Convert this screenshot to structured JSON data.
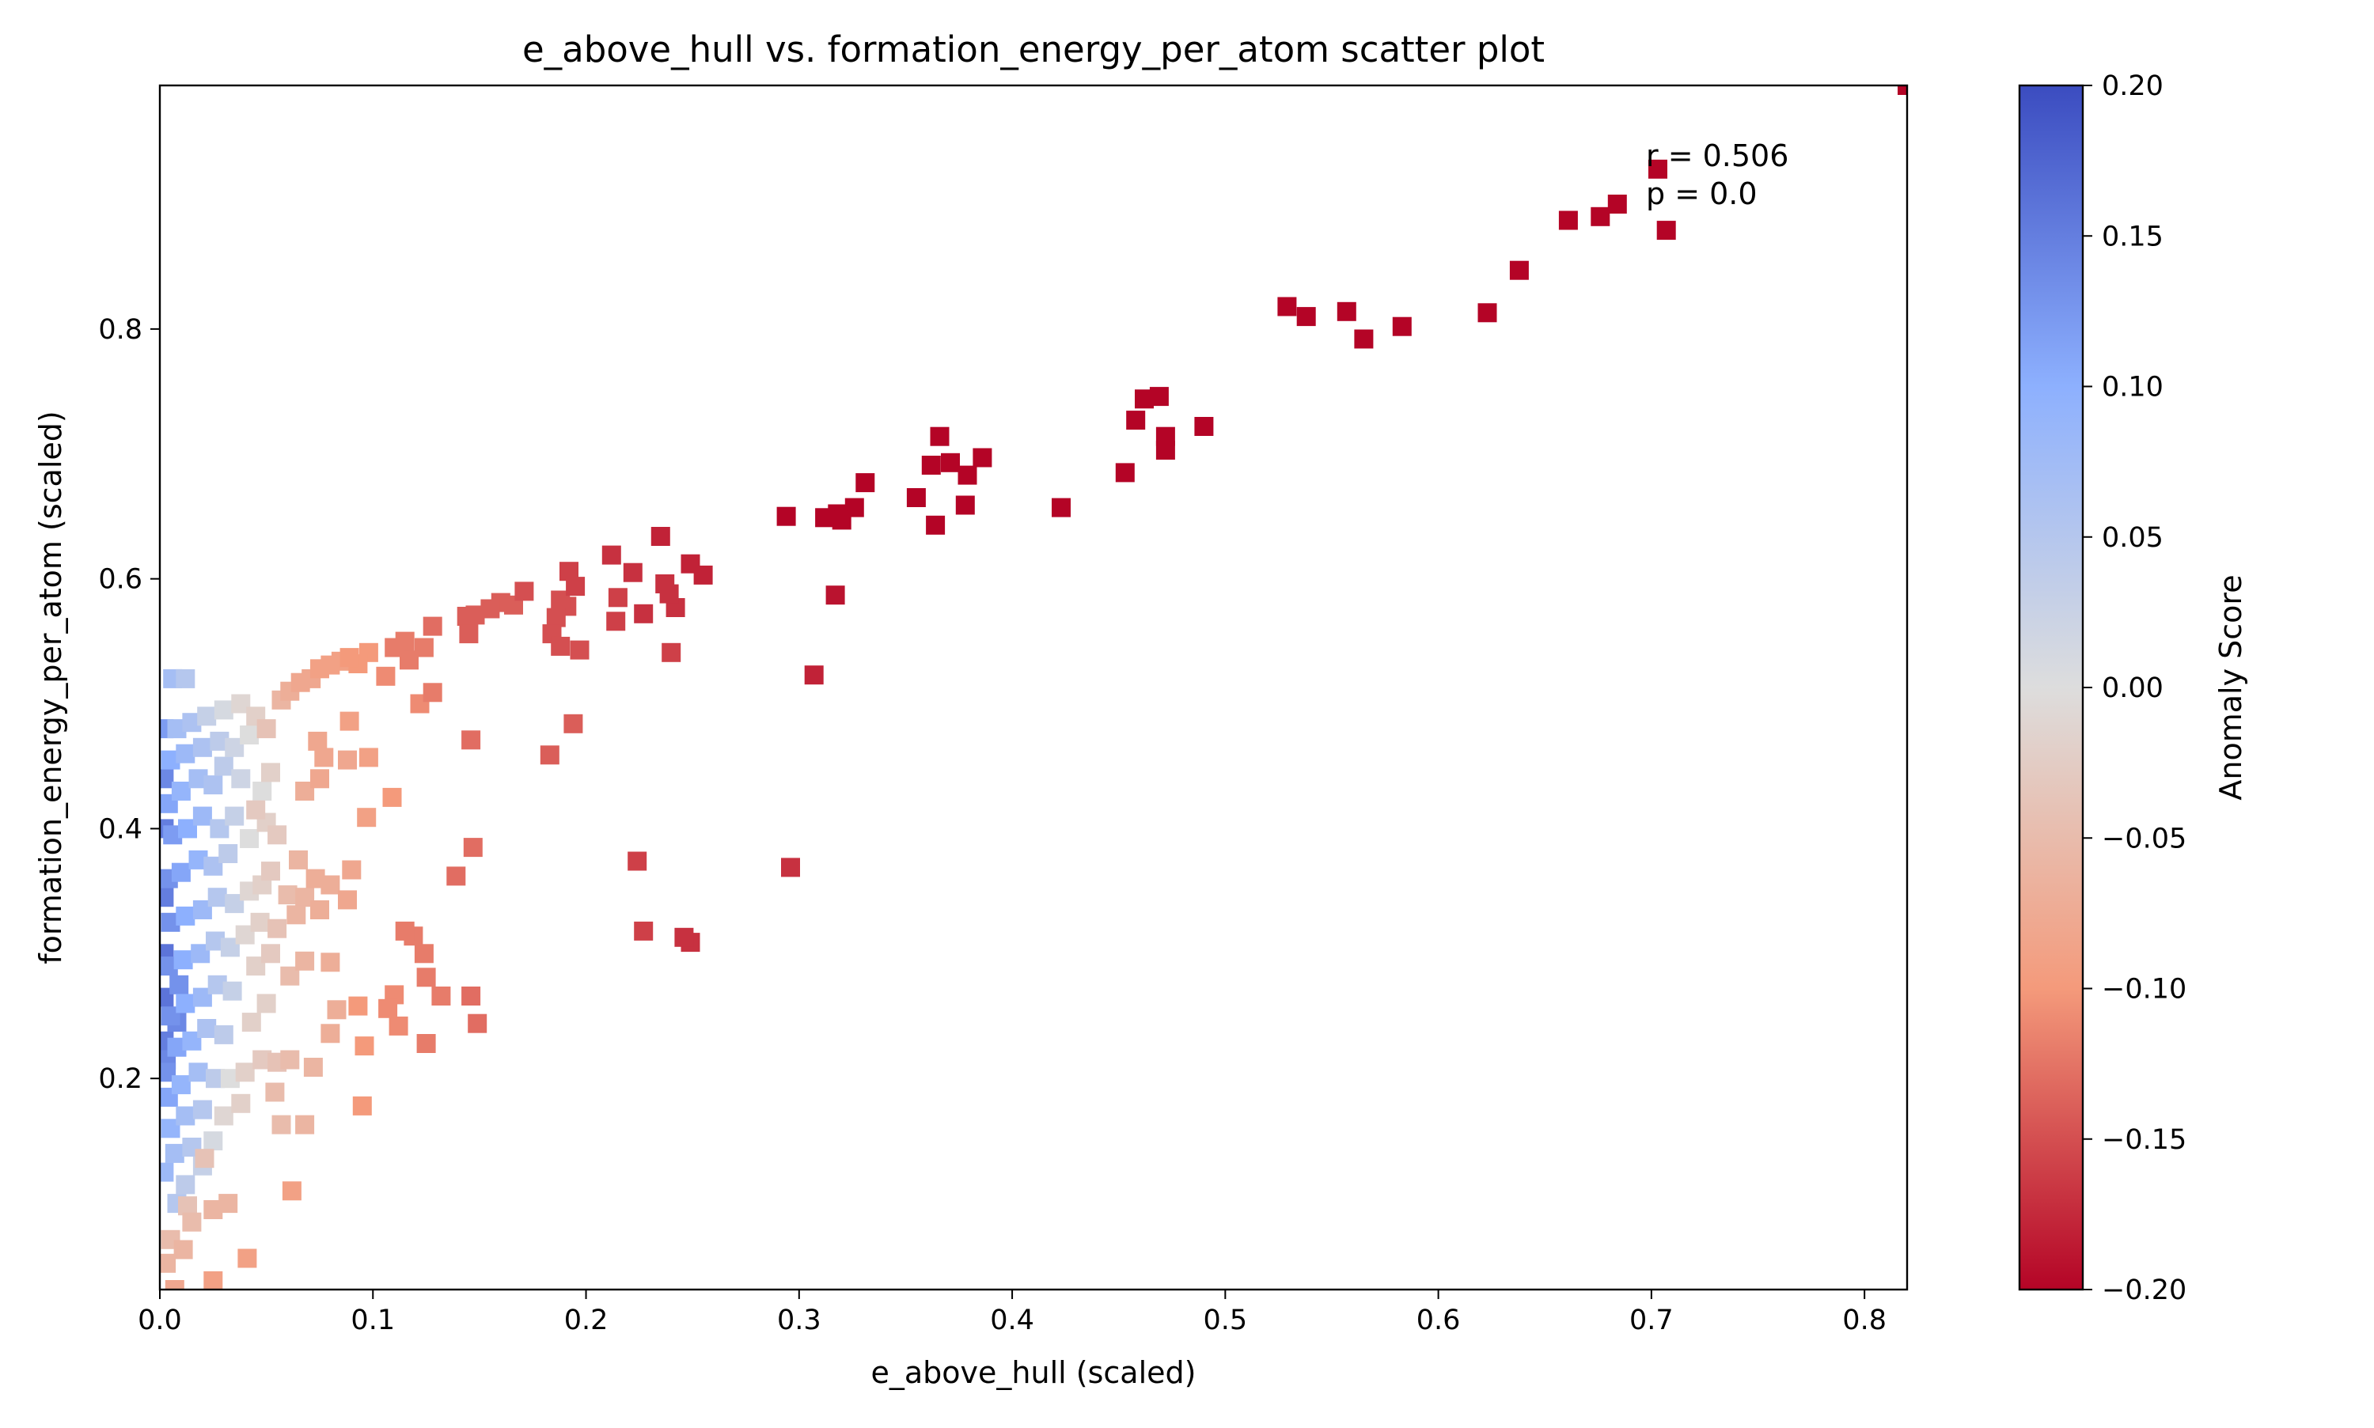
{
  "chart_data": {
    "type": "scatter",
    "title": "e_above_hull vs. formation_energy_per_atom scatter plot",
    "xlabel": "e_above_hull (scaled)",
    "ylabel": "formation_energy_per_atom (scaled)",
    "xlim": [
      0.0,
      0.82
    ],
    "ylim": [
      0.031,
      0.995
    ],
    "xticks": [
      0.0,
      0.1,
      0.2,
      0.3,
      0.4,
      0.5,
      0.6,
      0.7,
      0.8
    ],
    "xtick_labels": [
      "0.0",
      "0.1",
      "0.2",
      "0.3",
      "0.4",
      "0.5",
      "0.6",
      "0.7",
      "0.8"
    ],
    "yticks": [
      0.2,
      0.4,
      0.6,
      0.8
    ],
    "ytick_labels": [
      "0.2",
      "0.4",
      "0.6",
      "0.8"
    ],
    "grid": false,
    "marker": "square",
    "colorbar": {
      "label": "Anomaly Score",
      "colormap": "coolwarm",
      "range": [
        -0.2,
        0.2
      ],
      "ticks": [
        0.2,
        0.15,
        0.1,
        0.05,
        0.0,
        -0.05,
        -0.1,
        -0.15,
        -0.2
      ],
      "tick_labels": [
        "0.20",
        "0.15",
        "0.10",
        "0.05",
        "0.00",
        "−0.05",
        "−0.10",
        "−0.15",
        "−0.20"
      ]
    },
    "annotations": [
      "r = 0.506",
      "p = 0.0"
    ],
    "points": [
      [
        0.82,
        0.995,
        -0.2
      ],
      [
        0.703,
        0.928,
        -0.2
      ],
      [
        0.707,
        0.879,
        -0.2
      ],
      [
        0.684,
        0.9,
        -0.2
      ],
      [
        0.676,
        0.89,
        -0.2
      ],
      [
        0.661,
        0.887,
        -0.2
      ],
      [
        0.638,
        0.847,
        -0.2
      ],
      [
        0.623,
        0.813,
        -0.2
      ],
      [
        0.583,
        0.802,
        -0.2
      ],
      [
        0.565,
        0.792,
        -0.2
      ],
      [
        0.557,
        0.814,
        -0.2
      ],
      [
        0.538,
        0.81,
        -0.2
      ],
      [
        0.529,
        0.818,
        -0.2
      ],
      [
        0.49,
        0.722,
        -0.2
      ],
      [
        0.472,
        0.714,
        -0.2
      ],
      [
        0.472,
        0.703,
        -0.2
      ],
      [
        0.469,
        0.746,
        -0.2
      ],
      [
        0.462,
        0.744,
        -0.2
      ],
      [
        0.458,
        0.727,
        -0.2
      ],
      [
        0.453,
        0.685,
        -0.2
      ],
      [
        0.423,
        0.657,
        -0.2
      ],
      [
        0.386,
        0.697,
        -0.2
      ],
      [
        0.379,
        0.683,
        -0.2
      ],
      [
        0.378,
        0.659,
        -0.2
      ],
      [
        0.371,
        0.693,
        -0.2
      ],
      [
        0.366,
        0.714,
        -0.2
      ],
      [
        0.362,
        0.691,
        -0.2
      ],
      [
        0.364,
        0.643,
        -0.2
      ],
      [
        0.355,
        0.665,
        -0.2
      ],
      [
        0.331,
        0.677,
        -0.2
      ],
      [
        0.326,
        0.657,
        -0.2
      ],
      [
        0.318,
        0.652,
        -0.2
      ],
      [
        0.32,
        0.647,
        -0.2
      ],
      [
        0.312,
        0.649,
        -0.2
      ],
      [
        0.294,
        0.65,
        -0.2
      ],
      [
        0.317,
        0.587,
        -0.19
      ],
      [
        0.307,
        0.523,
        -0.18
      ],
      [
        0.296,
        0.369,
        -0.17
      ],
      [
        0.249,
        0.309,
        -0.17
      ],
      [
        0.246,
        0.313,
        -0.17
      ],
      [
        0.227,
        0.318,
        -0.16
      ],
      [
        0.224,
        0.374,
        -0.16
      ],
      [
        0.255,
        0.603,
        -0.18
      ],
      [
        0.249,
        0.612,
        -0.18
      ],
      [
        0.242,
        0.577,
        -0.17
      ],
      [
        0.239,
        0.588,
        -0.17
      ],
      [
        0.237,
        0.596,
        -0.17
      ],
      [
        0.235,
        0.634,
        -0.18
      ],
      [
        0.24,
        0.541,
        -0.16
      ],
      [
        0.227,
        0.572,
        -0.17
      ],
      [
        0.222,
        0.605,
        -0.17
      ],
      [
        0.215,
        0.585,
        -0.16
      ],
      [
        0.212,
        0.619,
        -0.17
      ],
      [
        0.214,
        0.566,
        -0.16
      ],
      [
        0.197,
        0.543,
        -0.15
      ],
      [
        0.195,
        0.594,
        -0.16
      ],
      [
        0.192,
        0.606,
        -0.16
      ],
      [
        0.191,
        0.578,
        -0.15
      ],
      [
        0.188,
        0.583,
        -0.15
      ],
      [
        0.186,
        0.569,
        -0.15
      ],
      [
        0.184,
        0.556,
        -0.15
      ],
      [
        0.188,
        0.546,
        -0.15
      ],
      [
        0.194,
        0.484,
        -0.14
      ],
      [
        0.183,
        0.459,
        -0.14
      ],
      [
        0.171,
        0.59,
        -0.15
      ],
      [
        0.166,
        0.579,
        -0.14
      ],
      [
        0.16,
        0.581,
        -0.14
      ],
      [
        0.155,
        0.576,
        -0.14
      ],
      [
        0.148,
        0.571,
        -0.14
      ],
      [
        0.144,
        0.57,
        -0.14
      ],
      [
        0.145,
        0.556,
        -0.14
      ],
      [
        0.146,
        0.471,
        -0.13
      ],
      [
        0.147,
        0.385,
        -0.13
      ],
      [
        0.139,
        0.362,
        -0.13
      ],
      [
        0.149,
        0.244,
        -0.13
      ],
      [
        0.146,
        0.266,
        -0.13
      ],
      [
        0.132,
        0.266,
        -0.12
      ],
      [
        0.125,
        0.281,
        -0.12
      ],
      [
        0.124,
        0.3,
        -0.12
      ],
      [
        0.119,
        0.314,
        -0.12
      ],
      [
        0.115,
        0.318,
        -0.12
      ],
      [
        0.125,
        0.228,
        -0.12
      ],
      [
        0.112,
        0.242,
        -0.11
      ],
      [
        0.11,
        0.267,
        -0.11
      ],
      [
        0.107,
        0.256,
        -0.11
      ],
      [
        0.096,
        0.226,
        -0.1
      ],
      [
        0.093,
        0.258,
        -0.1
      ],
      [
        0.095,
        0.178,
        -0.1
      ],
      [
        0.062,
        0.11,
        -0.09
      ],
      [
        0.041,
        0.056,
        -0.09
      ],
      [
        0.025,
        0.038,
        -0.09
      ],
      [
        0.007,
        0.031,
        -0.08
      ],
      [
        0.128,
        0.509,
        -0.12
      ],
      [
        0.122,
        0.5,
        -0.11
      ],
      [
        0.128,
        0.562,
        -0.13
      ],
      [
        0.124,
        0.545,
        -0.12
      ],
      [
        0.117,
        0.535,
        -0.12
      ],
      [
        0.115,
        0.55,
        -0.12
      ],
      [
        0.11,
        0.545,
        -0.12
      ],
      [
        0.106,
        0.522,
        -0.11
      ],
      [
        0.098,
        0.541,
        -0.1
      ],
      [
        0.093,
        0.532,
        -0.1
      ],
      [
        0.089,
        0.537,
        -0.1
      ],
      [
        0.085,
        0.534,
        -0.09
      ],
      [
        0.08,
        0.531,
        -0.09
      ],
      [
        0.075,
        0.528,
        -0.09
      ],
      [
        0.071,
        0.52,
        -0.08
      ],
      [
        0.066,
        0.517,
        -0.08
      ],
      [
        0.061,
        0.51,
        -0.07
      ],
      [
        0.057,
        0.503,
        -0.06
      ],
      [
        0.109,
        0.425,
        -0.1
      ],
      [
        0.098,
        0.457,
        -0.09
      ],
      [
        0.097,
        0.409,
        -0.09
      ],
      [
        0.089,
        0.486,
        -0.09
      ],
      [
        0.088,
        0.455,
        -0.08
      ],
      [
        0.077,
        0.457,
        -0.08
      ],
      [
        0.075,
        0.44,
        -0.08
      ],
      [
        0.068,
        0.43,
        -0.07
      ],
      [
        0.074,
        0.47,
        -0.08
      ],
      [
        0.09,
        0.367,
        -0.08
      ],
      [
        0.088,
        0.343,
        -0.08
      ],
      [
        0.08,
        0.355,
        -0.07
      ],
      [
        0.075,
        0.335,
        -0.07
      ],
      [
        0.073,
        0.36,
        -0.07
      ],
      [
        0.068,
        0.345,
        -0.06
      ],
      [
        0.064,
        0.331,
        -0.06
      ],
      [
        0.06,
        0.347,
        -0.05
      ],
      [
        0.065,
        0.375,
        -0.06
      ],
      [
        0.08,
        0.293,
        -0.07
      ],
      [
        0.068,
        0.294,
        -0.06
      ],
      [
        0.061,
        0.282,
        -0.05
      ],
      [
        0.083,
        0.255,
        -0.07
      ],
      [
        0.08,
        0.236,
        -0.07
      ],
      [
        0.072,
        0.209,
        -0.06
      ],
      [
        0.068,
        0.163,
        -0.06
      ],
      [
        0.057,
        0.163,
        -0.05
      ],
      [
        0.054,
        0.189,
        -0.05
      ],
      [
        0.061,
        0.215,
        -0.05
      ],
      [
        0.055,
        0.213,
        -0.04
      ],
      [
        0.032,
        0.1,
        -0.06
      ],
      [
        0.025,
        0.095,
        -0.06
      ],
      [
        0.021,
        0.136,
        -0.04
      ],
      [
        0.015,
        0.085,
        -0.05
      ],
      [
        0.011,
        0.063,
        -0.06
      ],
      [
        0.005,
        0.071,
        -0.05
      ],
      [
        0.003,
        0.052,
        -0.06
      ],
      [
        0.013,
        0.098,
        -0.04
      ],
      [
        0.052,
        0.445,
        -0.02
      ],
      [
        0.048,
        0.43,
        0.0
      ],
      [
        0.045,
        0.415,
        -0.03
      ],
      [
        0.05,
        0.405,
        -0.02
      ],
      [
        0.055,
        0.395,
        -0.03
      ],
      [
        0.042,
        0.392,
        0.0
      ],
      [
        0.052,
        0.366,
        -0.03
      ],
      [
        0.048,
        0.355,
        -0.02
      ],
      [
        0.042,
        0.35,
        -0.01
      ],
      [
        0.055,
        0.32,
        -0.04
      ],
      [
        0.047,
        0.325,
        -0.02
      ],
      [
        0.04,
        0.315,
        -0.01
      ],
      [
        0.052,
        0.3,
        -0.03
      ],
      [
        0.045,
        0.29,
        -0.02
      ],
      [
        0.05,
        0.26,
        -0.02
      ],
      [
        0.043,
        0.245,
        -0.02
      ],
      [
        0.048,
        0.215,
        -0.03
      ],
      [
        0.04,
        0.205,
        -0.02
      ],
      [
        0.033,
        0.2,
        0.0
      ],
      [
        0.038,
        0.18,
        -0.02
      ],
      [
        0.03,
        0.17,
        -0.01
      ],
      [
        0.025,
        0.15,
        0.01
      ],
      [
        0.02,
        0.13,
        0.03
      ],
      [
        0.012,
        0.115,
        0.04
      ],
      [
        0.008,
        0.1,
        0.05
      ],
      [
        0.05,
        0.48,
        -0.04
      ],
      [
        0.045,
        0.49,
        -0.02
      ],
      [
        0.038,
        0.5,
        -0.01
      ],
      [
        0.03,
        0.495,
        0.01
      ],
      [
        0.022,
        0.49,
        0.03
      ],
      [
        0.015,
        0.485,
        0.06
      ],
      [
        0.008,
        0.48,
        0.07
      ],
      [
        0.042,
        0.475,
        0.0
      ],
      [
        0.035,
        0.465,
        0.02
      ],
      [
        0.028,
        0.47,
        0.04
      ],
      [
        0.02,
        0.465,
        0.06
      ],
      [
        0.012,
        0.46,
        0.08
      ],
      [
        0.005,
        0.455,
        0.1
      ],
      [
        0.038,
        0.44,
        0.02
      ],
      [
        0.03,
        0.45,
        0.04
      ],
      [
        0.025,
        0.435,
        0.06
      ],
      [
        0.018,
        0.44,
        0.07
      ],
      [
        0.01,
        0.43,
        0.09
      ],
      [
        0.004,
        0.42,
        0.11
      ],
      [
        0.035,
        0.41,
        0.03
      ],
      [
        0.028,
        0.4,
        0.05
      ],
      [
        0.02,
        0.41,
        0.08
      ],
      [
        0.013,
        0.4,
        0.1
      ],
      [
        0.006,
        0.395,
        0.12
      ],
      [
        0.032,
        0.38,
        0.04
      ],
      [
        0.025,
        0.37,
        0.06
      ],
      [
        0.018,
        0.375,
        0.09
      ],
      [
        0.01,
        0.365,
        0.11
      ],
      [
        0.004,
        0.36,
        0.13
      ],
      [
        0.035,
        0.34,
        0.03
      ],
      [
        0.027,
        0.345,
        0.05
      ],
      [
        0.02,
        0.335,
        0.08
      ],
      [
        0.012,
        0.33,
        0.1
      ],
      [
        0.005,
        0.325,
        0.13
      ],
      [
        0.033,
        0.305,
        0.03
      ],
      [
        0.026,
        0.31,
        0.05
      ],
      [
        0.019,
        0.3,
        0.08
      ],
      [
        0.011,
        0.295,
        0.1
      ],
      [
        0.004,
        0.29,
        0.13
      ],
      [
        0.034,
        0.27,
        0.03
      ],
      [
        0.027,
        0.275,
        0.05
      ],
      [
        0.02,
        0.265,
        0.08
      ],
      [
        0.012,
        0.26,
        0.1
      ],
      [
        0.005,
        0.25,
        0.13
      ],
      [
        0.03,
        0.235,
        0.04
      ],
      [
        0.022,
        0.24,
        0.06
      ],
      [
        0.015,
        0.23,
        0.09
      ],
      [
        0.008,
        0.225,
        0.11
      ],
      [
        0.003,
        0.215,
        0.14
      ],
      [
        0.026,
        0.2,
        0.04
      ],
      [
        0.018,
        0.205,
        0.07
      ],
      [
        0.01,
        0.195,
        0.09
      ],
      [
        0.004,
        0.185,
        0.11
      ],
      [
        0.02,
        0.175,
        0.05
      ],
      [
        0.012,
        0.17,
        0.07
      ],
      [
        0.005,
        0.16,
        0.09
      ],
      [
        0.015,
        0.145,
        0.05
      ],
      [
        0.007,
        0.14,
        0.07
      ],
      [
        0.002,
        0.125,
        0.08
      ],
      [
        0.002,
        0.48,
        0.12
      ],
      [
        0.002,
        0.44,
        0.14
      ],
      [
        0.002,
        0.4,
        0.15
      ],
      [
        0.002,
        0.345,
        0.15
      ],
      [
        0.002,
        0.3,
        0.16
      ],
      [
        0.002,
        0.265,
        0.16
      ],
      [
        0.002,
        0.23,
        0.15
      ],
      [
        0.008,
        0.245,
        0.14
      ],
      [
        0.009,
        0.275,
        0.13
      ],
      [
        0.003,
        0.205,
        0.13
      ],
      [
        0.006,
        0.52,
        0.07
      ],
      [
        0.012,
        0.52,
        0.05
      ]
    ]
  }
}
